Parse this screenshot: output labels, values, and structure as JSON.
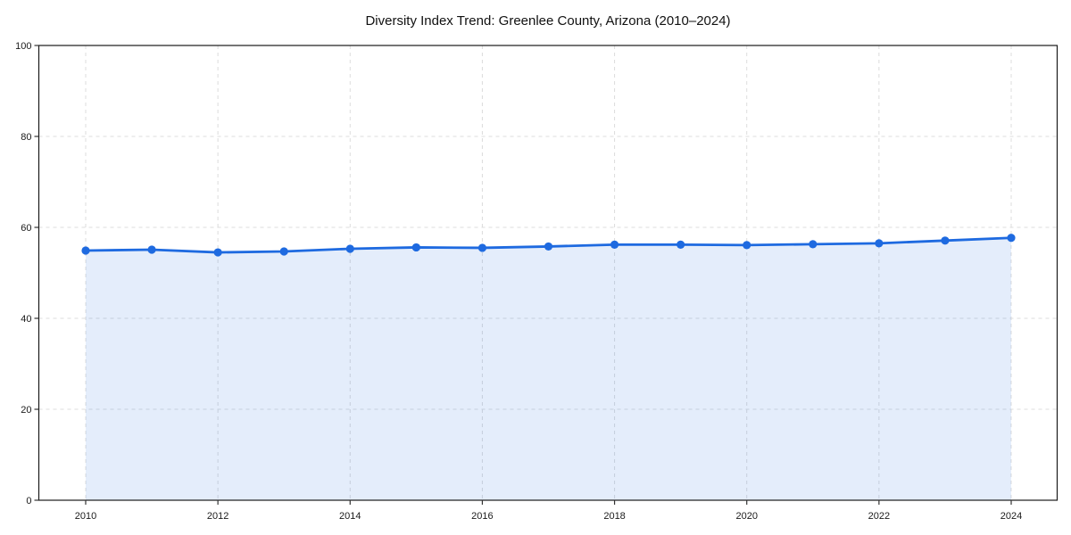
{
  "chart_data": {
    "type": "area",
    "title": "Diversity Index Trend: Greenlee County, Arizona (2010–2024)",
    "xlabel": "",
    "ylabel": "",
    "x": [
      2010,
      2011,
      2012,
      2013,
      2014,
      2015,
      2016,
      2017,
      2018,
      2019,
      2020,
      2021,
      2022,
      2023,
      2024
    ],
    "values": [
      54.9,
      55.1,
      54.5,
      54.7,
      55.3,
      55.6,
      55.5,
      55.8,
      56.2,
      56.2,
      56.1,
      56.3,
      56.5,
      57.1,
      57.7
    ],
    "ylim": [
      0,
      100
    ],
    "yticks": [
      0,
      20,
      40,
      60,
      80,
      100
    ],
    "xticks": [
      2010,
      2012,
      2014,
      2016,
      2018,
      2020,
      2022,
      2024
    ],
    "grid": "dashed",
    "legend": "none",
    "line_color": "#1e6ae0",
    "marker_color": "#1e6ae0",
    "fill_opacity": 0.12,
    "grid_color": "#dcdcdc",
    "axis_color": "#1a1a1a",
    "tick_color": "#333333",
    "title_color": "#111111",
    "tick_label_color": "#1a1a1a"
  }
}
